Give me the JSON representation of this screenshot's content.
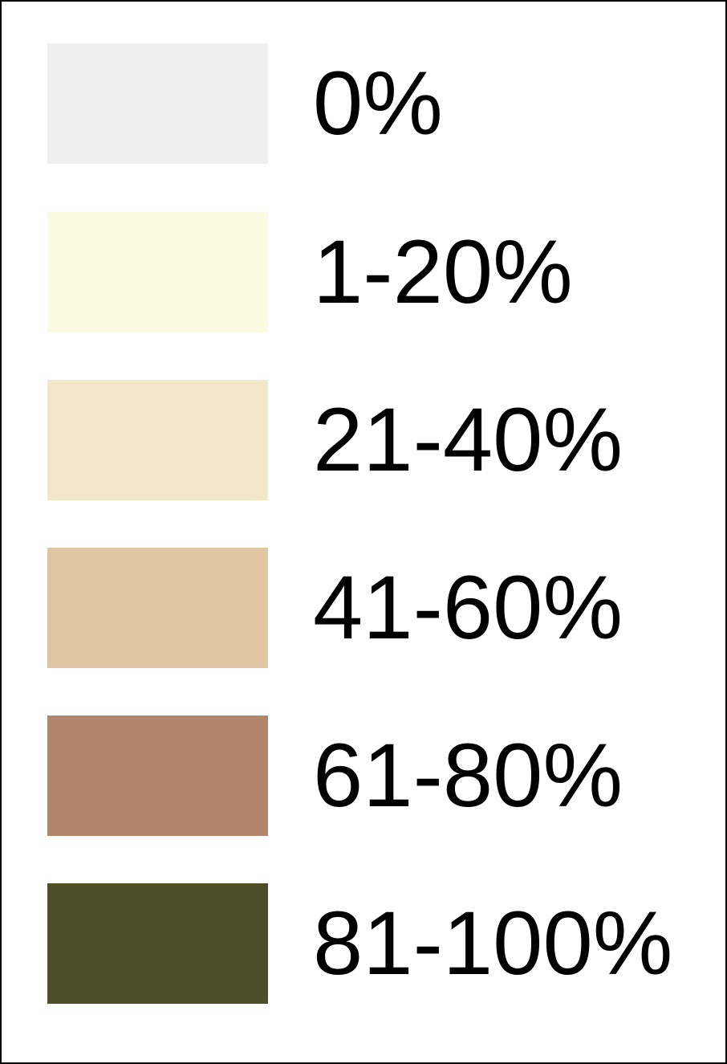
{
  "legend": {
    "items": [
      {
        "label": "0%",
        "color": "#efefef"
      },
      {
        "label": "1-20%",
        "color": "#fafbe0"
      },
      {
        "label": "21-40%",
        "color": "#f2e7c8"
      },
      {
        "label": "41-60%",
        "color": "#e0c6a2"
      },
      {
        "label": "61-80%",
        "color": "#b1856a"
      },
      {
        "label": "81-100%",
        "color": "#4f4d28"
      }
    ]
  }
}
